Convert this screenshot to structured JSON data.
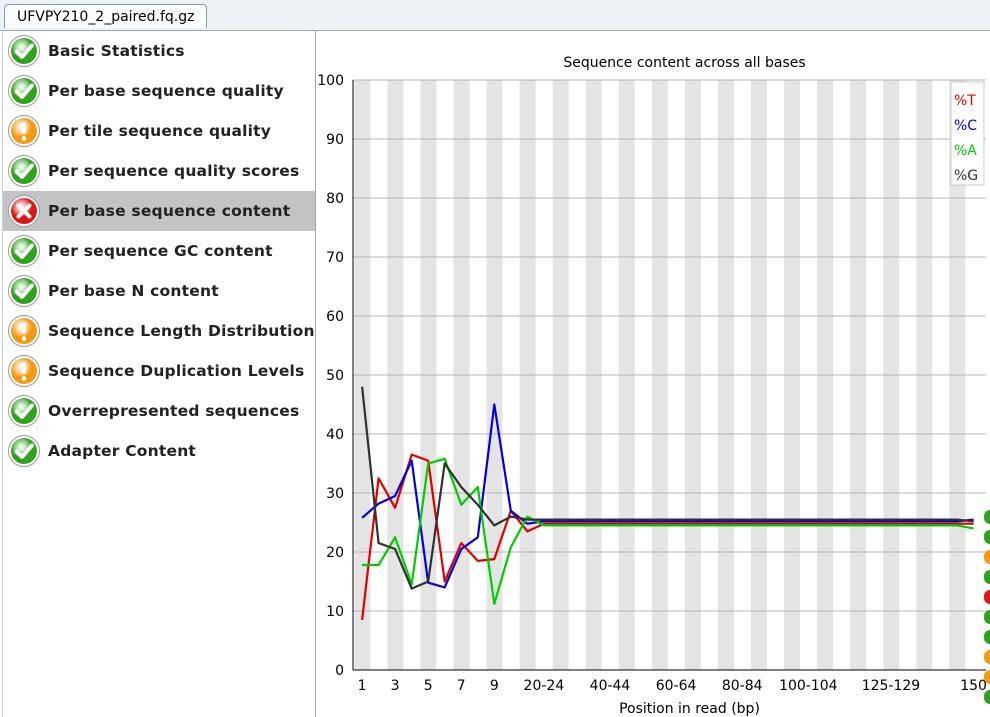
{
  "file_tab": {
    "label": "UFVPY210_2_paired.fq.gz"
  },
  "modules": [
    {
      "label": "Basic Statistics",
      "status": "pass"
    },
    {
      "label": "Per base sequence quality",
      "status": "pass"
    },
    {
      "label": "Per tile sequence quality",
      "status": "warn"
    },
    {
      "label": "Per sequence quality scores",
      "status": "pass"
    },
    {
      "label": "Per base sequence content",
      "status": "fail",
      "selected": true
    },
    {
      "label": "Per sequence GC content",
      "status": "pass"
    },
    {
      "label": "Per base N content",
      "status": "pass"
    },
    {
      "label": "Sequence Length Distribution",
      "status": "warn"
    },
    {
      "label": "Sequence Duplication Levels",
      "status": "warn"
    },
    {
      "label": "Overrepresented sequences",
      "status": "pass"
    },
    {
      "label": "Adapter Content",
      "status": "pass"
    }
  ],
  "status_colors": {
    "pass": "#2fa31e",
    "warn": "#f39a12",
    "fail": "#e01616"
  },
  "icons": {
    "pass": "check-icon",
    "warn": "exclamation-icon",
    "fail": "cross-icon"
  },
  "edge_icon_statuses": [
    "pass",
    "pass",
    "warn",
    "pass",
    "fail",
    "pass",
    "pass",
    "warn",
    "warn",
    "pass"
  ],
  "chart_data": {
    "type": "line",
    "title": "Sequence content across all bases",
    "xlabel": "Position in read (bp)",
    "ylabel": "",
    "ylim": [
      0,
      100
    ],
    "y_ticks": [
      0,
      10,
      20,
      30,
      40,
      50,
      60,
      70,
      80,
      90,
      100
    ],
    "categories": [
      "1",
      "2",
      "3",
      "4",
      "5",
      "6",
      "7",
      "8",
      "9",
      "10-14",
      "15-19",
      "20-24",
      "25-29",
      "30-34",
      "35-39",
      "40-44",
      "45-49",
      "50-54",
      "55-59",
      "60-64",
      "65-69",
      "70-74",
      "75-79",
      "80-84",
      "85-89",
      "90-94",
      "95-99",
      "100-104",
      "105-109",
      "110-114",
      "115-119",
      "120-124",
      "125-129",
      "130-134",
      "135-139",
      "140-144",
      "145-149",
      "150"
    ],
    "x_tick_labels": [
      "1",
      "",
      "3",
      "",
      "5",
      "",
      "7",
      "",
      "9",
      "",
      "",
      "20-24",
      "",
      "",
      "",
      "40-44",
      "",
      "",
      "",
      "60-64",
      "",
      "",
      "",
      "80-84",
      "",
      "",
      "",
      "100-104",
      "",
      "",
      "",
      "",
      "125-129",
      "",
      "",
      "",
      "",
      "150"
    ],
    "grid": "horizontal lines with alternating vertical column bands",
    "legend_position": "top-right",
    "series": [
      {
        "name": "%T",
        "color": "#e00000",
        "values": [
          8.5,
          32.5,
          27.5,
          36.5,
          35.5,
          15.0,
          21.5,
          18.5,
          18.8,
          27.0,
          23.5,
          24.8,
          24.8,
          24.8,
          24.8,
          24.8,
          24.8,
          24.8,
          24.8,
          24.8,
          24.8,
          24.8,
          24.8,
          24.8,
          24.8,
          24.8,
          24.8,
          24.8,
          24.8,
          24.8,
          24.8,
          24.8,
          24.8,
          24.8,
          24.8,
          24.8,
          24.8,
          24.8
        ]
      },
      {
        "name": "%C",
        "color": "#0000e0",
        "values": [
          25.8,
          28.2,
          29.5,
          35.5,
          14.8,
          14.0,
          20.5,
          22.5,
          45.0,
          27.0,
          24.8,
          25.2,
          25.2,
          25.2,
          25.2,
          25.2,
          25.2,
          25.2,
          25.2,
          25.2,
          25.2,
          25.2,
          25.2,
          25.2,
          25.2,
          25.2,
          25.2,
          25.2,
          25.2,
          25.2,
          25.2,
          25.2,
          25.2,
          25.2,
          25.2,
          25.2,
          25.2,
          25.5
        ]
      },
      {
        "name": "%A",
        "color": "#00cc00",
        "values": [
          17.8,
          17.8,
          22.5,
          14.5,
          35.0,
          35.8,
          28.0,
          31.0,
          11.2,
          20.8,
          26.0,
          24.5,
          24.5,
          24.5,
          24.5,
          24.5,
          24.5,
          24.5,
          24.5,
          24.5,
          24.5,
          24.5,
          24.5,
          24.5,
          24.5,
          24.5,
          24.5,
          24.5,
          24.5,
          24.5,
          24.5,
          24.5,
          24.5,
          24.5,
          24.5,
          24.5,
          24.5,
          24.0
        ]
      },
      {
        "name": "%G",
        "color": "#303030",
        "values": [
          48.0,
          21.5,
          20.5,
          13.8,
          15.0,
          35.0,
          31.0,
          28.0,
          24.5,
          26.0,
          25.5,
          25.5,
          25.5,
          25.5,
          25.5,
          25.5,
          25.5,
          25.5,
          25.5,
          25.5,
          25.5,
          25.5,
          25.5,
          25.5,
          25.5,
          25.5,
          25.5,
          25.5,
          25.5,
          25.5,
          25.5,
          25.5,
          25.5,
          25.5,
          25.5,
          25.5,
          25.5,
          25.2
        ]
      }
    ]
  }
}
